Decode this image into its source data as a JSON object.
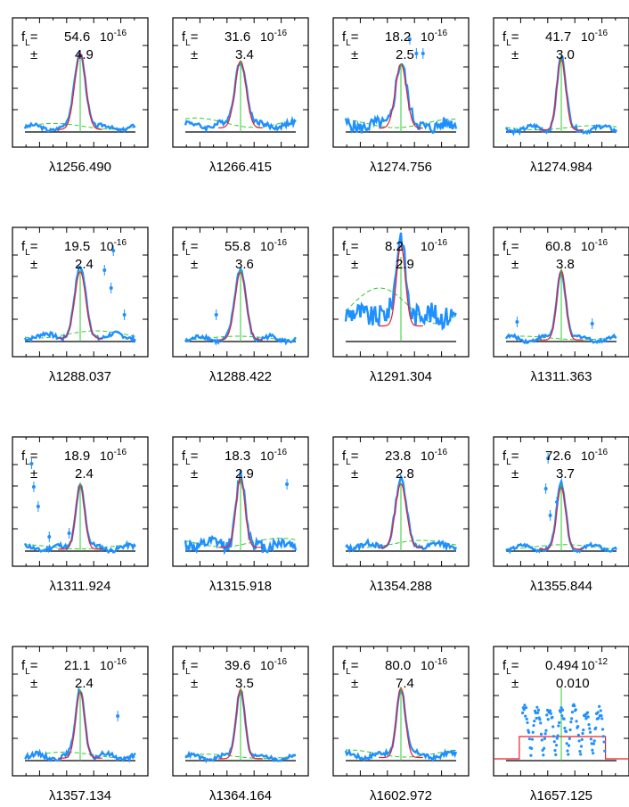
{
  "figure": {
    "flux_label": "f",
    "flux_sub": "L",
    "pm": "±",
    "lambda_symbol": "λ"
  },
  "colors": {
    "data": "#1e90ff",
    "fit": "#e8202a",
    "continuum": "#2fcc2f",
    "baseline": "#000000",
    "frame": "#000000"
  },
  "chart_data": [
    {
      "type": "line",
      "lambda": "1256.490",
      "flux": "54.6",
      "exp": "10",
      "exp_power": "-16",
      "err": "4.9",
      "amplitude": 0.85,
      "sigma": 0.05,
      "center": 0.5,
      "bg": 0.08,
      "noise": 0.04,
      "artifacts": []
    },
    {
      "type": "line",
      "lambda": "1266.415",
      "flux": "31.6",
      "exp": "10",
      "exp_power": "-16",
      "err": "3.4",
      "amplitude": 0.75,
      "sigma": 0.05,
      "center": 0.5,
      "bg": 0.13,
      "noise": 0.06,
      "artifacts": []
    },
    {
      "type": "line",
      "lambda": "1274.756",
      "flux": "18.2",
      "exp": "10",
      "exp_power": "-16",
      "err": "2.5",
      "amplitude": 0.72,
      "sigma": 0.05,
      "center": 0.5,
      "bg": 0.12,
      "noise": 0.14,
      "artifacts": [
        {
          "x": 0.64,
          "y": 0.88
        },
        {
          "x": 0.7,
          "y": 0.88
        },
        {
          "x": 0.58,
          "y": 1.04
        }
      ]
    },
    {
      "type": "line",
      "lambda": "1274.984",
      "flux": "41.7",
      "exp": "10",
      "exp_power": "-16",
      "err": "3.0",
      "amplitude": 0.8,
      "sigma": 0.04,
      "center": 0.5,
      "bg": 0.06,
      "noise": 0.05,
      "artifacts": []
    },
    {
      "type": "line",
      "lambda": "1288.037",
      "flux": "19.5",
      "exp": "10",
      "exp_power": "-16",
      "err": "2.4",
      "amplitude": 0.75,
      "sigma": 0.05,
      "center": 0.5,
      "bg": 0.1,
      "noise": 0.05,
      "artifacts": [
        {
          "x": 0.72,
          "y": 0.8
        },
        {
          "x": 0.78,
          "y": 0.6
        },
        {
          "x": 0.9,
          "y": 0.3
        },
        {
          "x": 0.8,
          "y": 1.02
        }
      ]
    },
    {
      "type": "line",
      "lambda": "1288.422",
      "flux": "55.8",
      "exp": "10",
      "exp_power": "-16",
      "err": "3.6",
      "amplitude": 0.76,
      "sigma": 0.05,
      "center": 0.5,
      "bg": 0.05,
      "noise": 0.05,
      "artifacts": [
        {
          "x": 0.28,
          "y": 0.3
        }
      ]
    },
    {
      "type": "line",
      "lambda": "1291.304",
      "flux": "8.2",
      "exp": "10",
      "exp_power": "-16",
      "err": "2.9",
      "amplitude": 0.9,
      "sigma": 0.04,
      "center": 0.5,
      "bg": 0.5,
      "noise": 0.25,
      "artifacts": []
    },
    {
      "type": "line",
      "lambda": "1311.363",
      "flux": "60.8",
      "exp": "10",
      "exp_power": "-16",
      "err": "3.8",
      "amplitude": 0.78,
      "sigma": 0.04,
      "center": 0.5,
      "bg": 0.05,
      "noise": 0.04,
      "artifacts": [
        {
          "x": 0.1,
          "y": 0.22
        },
        {
          "x": 0.78,
          "y": 0.2
        }
      ]
    },
    {
      "type": "line",
      "lambda": "1311.924",
      "flux": "18.9",
      "exp": "10",
      "exp_power": "-16",
      "err": "2.4",
      "amplitude": 0.72,
      "sigma": 0.04,
      "center": 0.5,
      "bg": 0.06,
      "noise": 0.05,
      "artifacts": [
        {
          "x": 0.06,
          "y": 0.98
        },
        {
          "x": 0.08,
          "y": 0.72
        },
        {
          "x": 0.12,
          "y": 0.5
        },
        {
          "x": 0.22,
          "y": 0.16
        },
        {
          "x": 0.4,
          "y": 0.2
        }
      ]
    },
    {
      "type": "line",
      "lambda": "1315.918",
      "flux": "18.3",
      "exp": "10",
      "exp_power": "-16",
      "err": "2.9",
      "amplitude": 0.78,
      "sigma": 0.04,
      "center": 0.5,
      "bg": 0.12,
      "noise": 0.14,
      "artifacts": [
        {
          "x": 0.92,
          "y": 0.75
        }
      ]
    },
    {
      "type": "line",
      "lambda": "1354.288",
      "flux": "23.8",
      "exp": "10",
      "exp_power": "-16",
      "err": "2.8",
      "amplitude": 0.72,
      "sigma": 0.05,
      "center": 0.5,
      "bg": 0.1,
      "noise": 0.06,
      "artifacts": []
    },
    {
      "type": "line",
      "lambda": "1355.844",
      "flux": "72.6",
      "exp": "10",
      "exp_power": "-16",
      "err": "3.7",
      "amplitude": 0.7,
      "sigma": 0.04,
      "center": 0.5,
      "bg": 0.06,
      "noise": 0.04,
      "artifacts": [
        {
          "x": 0.38,
          "y": 1.04
        },
        {
          "x": 0.36,
          "y": 0.7
        },
        {
          "x": 0.4,
          "y": 0.4
        },
        {
          "x": 0.46,
          "y": 0.55
        }
      ]
    },
    {
      "type": "line",
      "lambda": "1357.134",
      "flux": "21.1",
      "exp": "10",
      "exp_power": "-16",
      "err": "2.4",
      "amplitude": 0.75,
      "sigma": 0.04,
      "center": 0.5,
      "bg": 0.08,
      "noise": 0.05,
      "artifacts": [
        {
          "x": 0.84,
          "y": 0.5
        }
      ]
    },
    {
      "type": "line",
      "lambda": "1364.164",
      "flux": "39.6",
      "exp": "10",
      "exp_power": "-16",
      "err": "3.5",
      "amplitude": 0.78,
      "sigma": 0.04,
      "center": 0.5,
      "bg": 0.06,
      "noise": 0.04,
      "artifacts": []
    },
    {
      "type": "line",
      "lambda": "1602.972",
      "flux": "80.0",
      "exp": "10",
      "exp_power": "-16",
      "err": "7.4",
      "amplitude": 0.78,
      "sigma": 0.04,
      "center": 0.5,
      "bg": 0.1,
      "noise": 0.05,
      "artifacts": []
    },
    {
      "type": "line",
      "lambda": "1657.125",
      "flux": "0.494",
      "exp": "10",
      "exp_power": "-12",
      "err": "0.010",
      "amplitude": 0.0,
      "sigma": 0.04,
      "center": 0.5,
      "bg": 0.05,
      "noise": 0.0,
      "special": "box",
      "artifacts": []
    }
  ]
}
